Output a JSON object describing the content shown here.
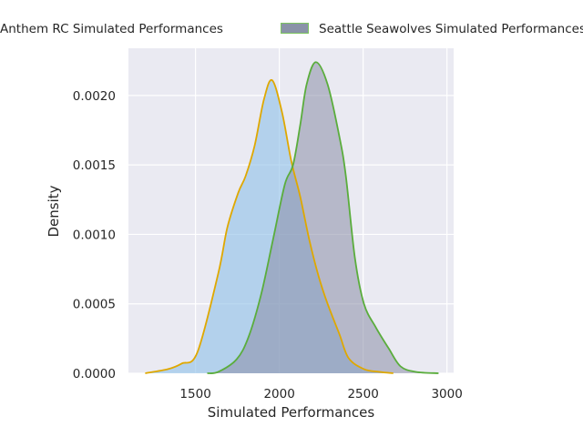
{
  "chart_data": {
    "type": "area",
    "subtype": "kde",
    "title": "",
    "xlabel": "Simulated Performances",
    "ylabel": "Density",
    "xlim": [
      1100,
      3040
    ],
    "ylim": [
      0,
      0.00234
    ],
    "grid": true,
    "legend_placement": "top (outside, clipped at left and right)",
    "x_ticks": [
      1500,
      2000,
      2500,
      3000
    ],
    "x_tick_labels": [
      "1500",
      "2000",
      "2500",
      "3000"
    ],
    "y_ticks": [
      0,
      0.0005,
      0.001,
      0.0015,
      0.002
    ],
    "y_tick_labels": [
      "0.0000",
      "0.0005",
      "0.0010",
      "0.0015",
      "0.0020"
    ],
    "series": [
      {
        "name": "Anthem RC Simulated Performances",
        "line_color": "#dfa800",
        "fill_color": "#8ebfe8",
        "x": [
          1200,
          1337,
          1418,
          1511,
          1636,
          1690,
          1755,
          1799,
          1853,
          1908,
          1957,
          2016,
          2071,
          2125,
          2179,
          2234,
          2288,
          2359,
          2413,
          2505,
          2598,
          2680
        ],
        "y": [
          0,
          3e-05,
          7e-05,
          0.00015,
          0.00072,
          0.00105,
          0.0013,
          0.00142,
          0.00164,
          0.00197,
          0.00211,
          0.00188,
          0.00153,
          0.00127,
          0.00096,
          0.0007,
          0.0005,
          0.00028,
          0.00011,
          3e-05,
          1e-05,
          0
        ]
      },
      {
        "name": "Seattle Seawolves Simulated Performances",
        "line_color": "#5aad3c",
        "fill_color": "#8a8ea8",
        "x": [
          1570,
          1636,
          1745,
          1816,
          1892,
          1962,
          2033,
          2082,
          2125,
          2163,
          2218,
          2288,
          2359,
          2397,
          2451,
          2505,
          2576,
          2652,
          2723,
          2815,
          2950
        ],
        "y": [
          0,
          1e-05,
          0.0001,
          0.00026,
          0.00057,
          0.00096,
          0.00136,
          0.0015,
          0.00179,
          0.00208,
          0.00224,
          0.00208,
          0.0017,
          0.00142,
          0.00083,
          0.0005,
          0.00033,
          0.00018,
          5e-05,
          1e-05,
          0
        ]
      }
    ]
  }
}
